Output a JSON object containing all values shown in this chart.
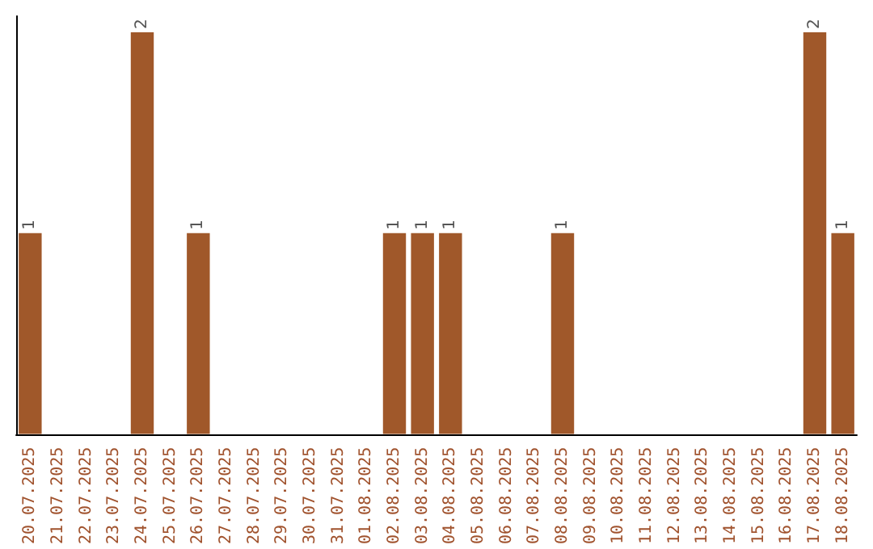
{
  "chart_data": {
    "type": "bar",
    "categories": [
      "20.07.2025",
      "21.07.2025",
      "22.07.2025",
      "23.07.2025",
      "24.07.2025",
      "25.07.2025",
      "26.07.2025",
      "27.07.2025",
      "28.07.2025",
      "29.07.2025",
      "30.07.2025",
      "31.07.2025",
      "01.08.2025",
      "02.08.2025",
      "03.08.2025",
      "04.08.2025",
      "05.08.2025",
      "06.08.2025",
      "07.08.2025",
      "08.08.2025",
      "09.08.2025",
      "10.08.2025",
      "11.08.2025",
      "12.08.2025",
      "13.08.2025",
      "14.08.2025",
      "15.08.2025",
      "16.08.2025",
      "17.08.2025",
      "18.08.2025"
    ],
    "values": [
      1,
      0,
      0,
      0,
      2,
      0,
      1,
      0,
      0,
      0,
      0,
      0,
      0,
      1,
      1,
      1,
      0,
      0,
      0,
      1,
      0,
      0,
      0,
      0,
      0,
      0,
      0,
      0,
      2,
      1
    ],
    "value_labels": [
      "1",
      null,
      null,
      null,
      "2",
      null,
      "1",
      null,
      null,
      null,
      null,
      null,
      null,
      "1",
      "1",
      "1",
      null,
      null,
      null,
      "1",
      null,
      null,
      null,
      null,
      null,
      null,
      null,
      null,
      "2",
      "1"
    ],
    "color": "#a0582a",
    "tick_labels": "x"
  }
}
